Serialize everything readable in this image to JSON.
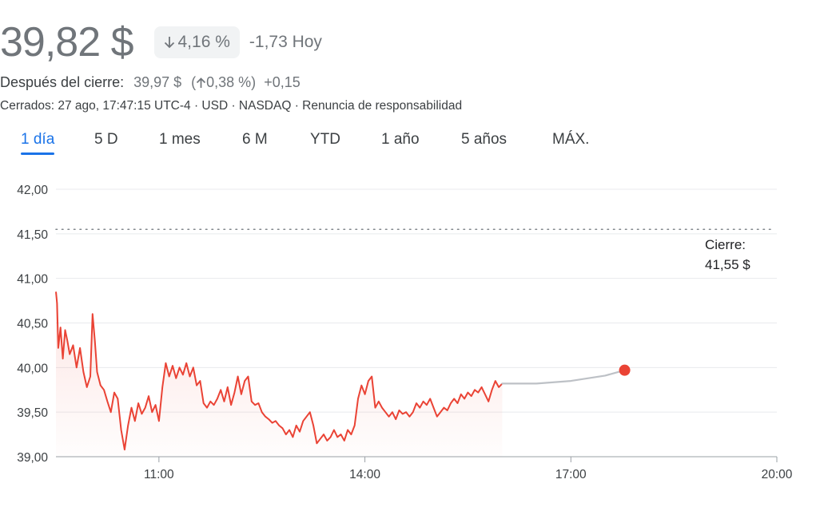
{
  "quote": {
    "price": "39,82 $",
    "change_pct": "4,16 %",
    "change_abs": "-1,73 Hoy",
    "after_label": "Después del cierre:",
    "after_price": "39,97 $",
    "after_pct_open": "(",
    "after_pct": "0,38 %)",
    "after_abs": "+0,15",
    "meta": "Cerrados: 27 ago, 17:47:15 UTC-4 · USD · NASDAQ · Renuncia de responsabilidad"
  },
  "tabs": [
    {
      "label": "1 día",
      "active": true
    },
    {
      "label": "5 D",
      "active": false
    },
    {
      "label": "1 mes",
      "active": false
    },
    {
      "label": "6 M",
      "active": false
    },
    {
      "label": "YTD",
      "active": false
    },
    {
      "label": "1 año",
      "active": false
    },
    {
      "label": "5 años",
      "active": false
    },
    {
      "label": "MÁX.",
      "active": false
    }
  ],
  "colors": {
    "line": "#ea4335",
    "after_hours": "#bdc1c6",
    "grid": "#e8eaed",
    "text_muted": "#70757a",
    "accent": "#1a73e8"
  },
  "chart_data": {
    "type": "line",
    "x_axis": "time",
    "xlim": [
      "09:30",
      "20:00"
    ],
    "x_ticks": [
      "11:00",
      "14:00",
      "17:00",
      "20:00"
    ],
    "ylim": [
      39.0,
      42.0
    ],
    "y_ticks": [
      "42,00",
      "41,50",
      "41,00",
      "40,50",
      "40,00",
      "39,50",
      "39,00"
    ],
    "y_tick_values": [
      42.0,
      41.5,
      41.0,
      40.5,
      40.0,
      39.5,
      39.0
    ],
    "previous_close": {
      "label_line1": "Cierre:",
      "label_line2": "41,55 $",
      "value": 41.55
    },
    "series": [
      {
        "values": [
          [
            "09:30",
            40.85
          ],
          [
            "09:31",
            40.72
          ],
          [
            "09:32",
            40.22
          ],
          [
            "09:34",
            40.45
          ],
          [
            "09:36",
            40.1
          ],
          [
            "09:38",
            40.42
          ],
          [
            "09:40",
            40.3
          ],
          [
            "09:42",
            40.15
          ],
          [
            "09:45",
            40.25
          ],
          [
            "09:48",
            40.0
          ],
          [
            "09:51",
            40.22
          ],
          [
            "09:54",
            39.95
          ],
          [
            "09:57",
            39.78
          ],
          [
            "10:00",
            39.9
          ],
          [
            "10:02",
            40.6
          ],
          [
            "10:04",
            40.3
          ],
          [
            "10:06",
            39.95
          ],
          [
            "10:09",
            39.8
          ],
          [
            "10:12",
            39.75
          ],
          [
            "10:15",
            39.62
          ],
          [
            "10:18",
            39.5
          ],
          [
            "10:21",
            39.72
          ],
          [
            "10:24",
            39.65
          ],
          [
            "10:27",
            39.3
          ],
          [
            "10:30",
            39.08
          ],
          [
            "10:33",
            39.35
          ],
          [
            "10:36",
            39.55
          ],
          [
            "10:39",
            39.4
          ],
          [
            "10:42",
            39.6
          ],
          [
            "10:45",
            39.48
          ],
          [
            "10:48",
            39.55
          ],
          [
            "10:51",
            39.68
          ],
          [
            "10:54",
            39.5
          ],
          [
            "10:57",
            39.58
          ],
          [
            "11:00",
            39.4
          ],
          [
            "11:03",
            39.78
          ],
          [
            "11:06",
            40.05
          ],
          [
            "11:09",
            39.9
          ],
          [
            "11:12",
            40.02
          ],
          [
            "11:15",
            39.88
          ],
          [
            "11:18",
            40.0
          ],
          [
            "11:21",
            39.92
          ],
          [
            "11:24",
            40.05
          ],
          [
            "11:27",
            39.9
          ],
          [
            "11:30",
            40.0
          ],
          [
            "11:33",
            39.8
          ],
          [
            "11:36",
            39.85
          ],
          [
            "11:39",
            39.6
          ],
          [
            "11:42",
            39.55
          ],
          [
            "11:45",
            39.62
          ],
          [
            "11:48",
            39.58
          ],
          [
            "11:51",
            39.65
          ],
          [
            "11:54",
            39.75
          ],
          [
            "11:57",
            39.62
          ],
          [
            "12:00",
            39.78
          ],
          [
            "12:03",
            39.58
          ],
          [
            "12:06",
            39.72
          ],
          [
            "12:09",
            39.9
          ],
          [
            "12:12",
            39.7
          ],
          [
            "12:15",
            39.85
          ],
          [
            "12:18",
            39.9
          ],
          [
            "12:21",
            39.62
          ],
          [
            "12:24",
            39.58
          ],
          [
            "12:27",
            39.6
          ],
          [
            "12:30",
            39.5
          ],
          [
            "12:33",
            39.45
          ],
          [
            "12:36",
            39.42
          ],
          [
            "12:39",
            39.38
          ],
          [
            "12:42",
            39.4
          ],
          [
            "12:45",
            39.35
          ],
          [
            "12:48",
            39.32
          ],
          [
            "12:51",
            39.25
          ],
          [
            "12:54",
            39.3
          ],
          [
            "12:57",
            39.22
          ],
          [
            "13:00",
            39.35
          ],
          [
            "13:03",
            39.28
          ],
          [
            "13:06",
            39.4
          ],
          [
            "13:09",
            39.45
          ],
          [
            "13:12",
            39.5
          ],
          [
            "13:15",
            39.35
          ],
          [
            "13:18",
            39.15
          ],
          [
            "13:21",
            39.2
          ],
          [
            "13:24",
            39.25
          ],
          [
            "13:27",
            39.18
          ],
          [
            "13:30",
            39.22
          ],
          [
            "13:33",
            39.3
          ],
          [
            "13:36",
            39.22
          ],
          [
            "13:39",
            39.25
          ],
          [
            "13:42",
            39.18
          ],
          [
            "13:45",
            39.3
          ],
          [
            "13:48",
            39.25
          ],
          [
            "13:51",
            39.35
          ],
          [
            "13:54",
            39.65
          ],
          [
            "13:57",
            39.8
          ],
          [
            "14:00",
            39.7
          ],
          [
            "14:03",
            39.85
          ],
          [
            "14:06",
            39.9
          ],
          [
            "14:09",
            39.55
          ],
          [
            "14:12",
            39.62
          ],
          [
            "14:15",
            39.55
          ],
          [
            "14:18",
            39.5
          ],
          [
            "14:21",
            39.45
          ],
          [
            "14:24",
            39.5
          ],
          [
            "14:27",
            39.42
          ],
          [
            "14:30",
            39.52
          ],
          [
            "14:33",
            39.48
          ],
          [
            "14:36",
            39.5
          ],
          [
            "14:39",
            39.45
          ],
          [
            "14:42",
            39.5
          ],
          [
            "14:45",
            39.6
          ],
          [
            "14:48",
            39.55
          ],
          [
            "14:51",
            39.62
          ],
          [
            "14:54",
            39.58
          ],
          [
            "14:57",
            39.65
          ],
          [
            "15:00",
            39.55
          ],
          [
            "15:03",
            39.45
          ],
          [
            "15:06",
            39.5
          ],
          [
            "15:09",
            39.55
          ],
          [
            "15:12",
            39.52
          ],
          [
            "15:15",
            39.6
          ],
          [
            "15:18",
            39.65
          ],
          [
            "15:21",
            39.6
          ],
          [
            "15:24",
            39.7
          ],
          [
            "15:27",
            39.65
          ],
          [
            "15:30",
            39.72
          ],
          [
            "15:33",
            39.68
          ],
          [
            "15:36",
            39.75
          ],
          [
            "15:39",
            39.72
          ],
          [
            "15:42",
            39.78
          ],
          [
            "15:45",
            39.7
          ],
          [
            "15:48",
            39.62
          ],
          [
            "15:51",
            39.75
          ],
          [
            "15:54",
            39.85
          ],
          [
            "15:57",
            39.78
          ],
          [
            "16:00",
            39.82
          ]
        ]
      },
      {
        "values": [
          [
            "16:00",
            39.82
          ],
          [
            "16:30",
            39.82
          ],
          [
            "17:00",
            39.85
          ],
          [
            "17:30",
            39.91
          ],
          [
            "17:47",
            39.97
          ]
        ]
      }
    ]
  }
}
